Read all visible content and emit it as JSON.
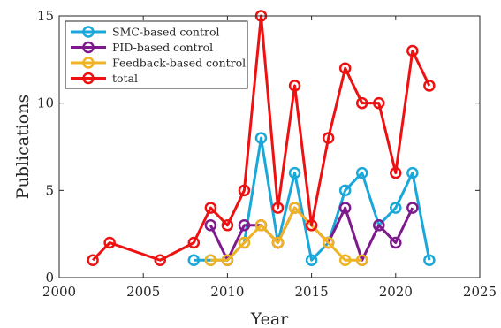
{
  "chart_data": {
    "type": "line",
    "xlabel": "Year",
    "ylabel": "Publications",
    "xlim": [
      2000,
      2025
    ],
    "ylim": [
      0,
      15
    ],
    "xticks": [
      2000,
      2005,
      2010,
      2015,
      2020,
      2025
    ],
    "yticks": [
      0,
      5,
      10,
      15
    ],
    "grid": false,
    "legend_position": "top-left",
    "series": [
      {
        "name": "SMC-based control",
        "color": "#1aa7d9",
        "x": [
          2008,
          2009,
          2010,
          2011,
          2012,
          2013,
          2014,
          2015,
          2016,
          2017,
          2018,
          2019,
          2020,
          2021,
          2022
        ],
        "y": [
          1,
          1,
          1,
          2,
          8,
          2,
          6,
          1,
          2,
          5,
          6,
          3,
          4,
          6,
          1
        ]
      },
      {
        "name": "PID-based control",
        "color": "#7d1a8c",
        "x": [
          2009,
          2010,
          2011,
          2012,
          2013,
          2014,
          2016,
          2017,
          2018,
          2019,
          2020,
          2021
        ],
        "y": [
          3,
          1,
          3,
          3,
          2,
          4,
          2,
          4,
          1,
          3,
          2,
          4
        ]
      },
      {
        "name": "Feedback-based control",
        "color": "#f0b323",
        "x": [
          2009,
          2010,
          2011,
          2012,
          2013,
          2014,
          2016,
          2017,
          2018
        ],
        "y": [
          1,
          1,
          2,
          3,
          2,
          4,
          2,
          1,
          1
        ]
      },
      {
        "name": "total",
        "color": "#ee1111",
        "x": [
          2002,
          2003,
          2006,
          2008,
          2009,
          2010,
          2011,
          2012,
          2013,
          2014,
          2015,
          2016,
          2017,
          2018,
          2019,
          2020,
          2021,
          2022
        ],
        "y": [
          1,
          2,
          1,
          2,
          4,
          3,
          5,
          15,
          4,
          11,
          3,
          8,
          12,
          10,
          10,
          6,
          13,
          11
        ]
      }
    ]
  }
}
